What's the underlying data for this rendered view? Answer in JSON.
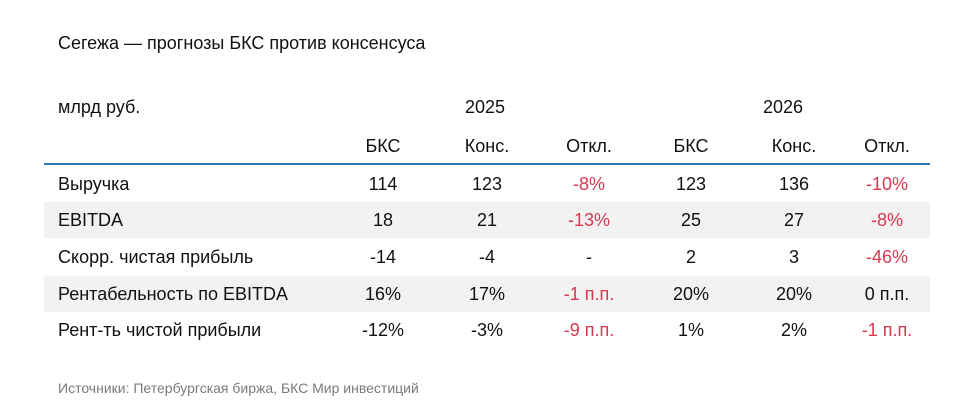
{
  "title": "Сегежа — прогнозы БКС против консенсуса",
  "unit": "млрд руб.",
  "years": [
    "2025",
    "2026"
  ],
  "subheaders": [
    "БКС",
    "Конс.",
    "Откл.",
    "БКС",
    "Конс.",
    "Откл."
  ],
  "rows": [
    {
      "label": "Выручка",
      "values": [
        "114",
        "123",
        "-8%",
        "123",
        "136",
        "-10%"
      ],
      "shaded": false
    },
    {
      "label": "EBITDA",
      "values": [
        "18",
        "21",
        "-13%",
        "25",
        "27",
        "-8%"
      ],
      "shaded": true
    },
    {
      "label": "Скорр. чистая прибыль",
      "values": [
        "-14",
        "-4",
        "-",
        "2",
        "3",
        "-46%"
      ],
      "shaded": false
    },
    {
      "label": "Рентабельность по EBITDA",
      "values": [
        "16%",
        "17%",
        "-1 п.п.",
        "20%",
        "20%",
        "0 п.п."
      ],
      "shaded": true
    },
    {
      "label": "Рент-ть чистой прибыли",
      "values": [
        "-12%",
        "-3%",
        "-9 п.п.",
        "1%",
        "2%",
        "-1 п.п."
      ],
      "shaded": false
    }
  ],
  "source": "Источники: Петербургская биржа, БКС Мир инвестиций",
  "colors": {
    "accent_rule": "#2b7bb9",
    "negative": "#d8384e",
    "shade": "#f2f2f2"
  }
}
